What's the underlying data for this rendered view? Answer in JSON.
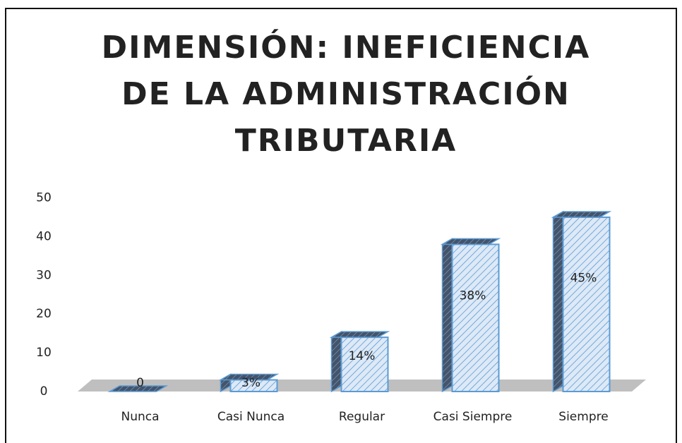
{
  "chart_data": {
    "type": "bar3d",
    "title": [
      "DIMENSIÓN: INEFICIENCIA",
      "DE LA ADMINISTRACIÓN",
      "TRIBUTARIA"
    ],
    "categories": [
      "Nunca",
      "Casi Nunca",
      "Regular",
      "Casi Siempre",
      "Siempre"
    ],
    "values": [
      0,
      3,
      14,
      38,
      45
    ],
    "value_labels": [
      "0",
      "3%",
      "14%",
      "38%",
      "45%"
    ],
    "color": "#5b9bd5",
    "ylim": [
      0,
      50
    ],
    "yticks": [
      0,
      10,
      20,
      30,
      40,
      50
    ],
    "grid": false
  }
}
